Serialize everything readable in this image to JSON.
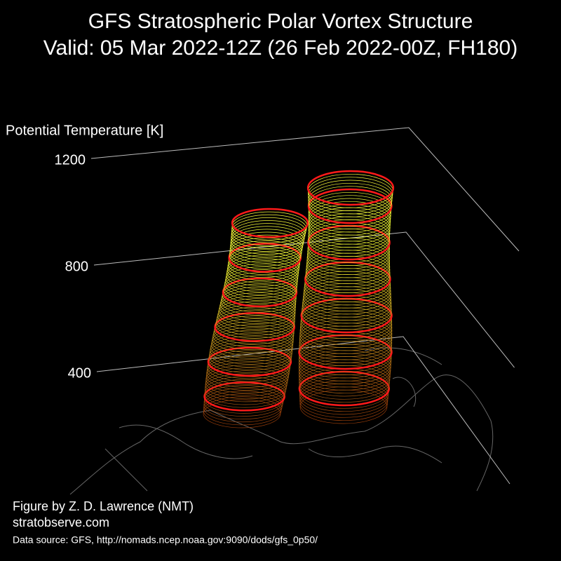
{
  "chart_data": {
    "type": "vortex3d",
    "title": "GFS Stratospheric Polar Vortex Structure",
    "subtitle": "Valid: 05 Mar 2022-12Z  (26 Feb 2022-00Z, FH180)",
    "zlabel": "Potential Temperature [K]",
    "zlim": [
      400,
      1200
    ],
    "zticks": [
      400,
      800,
      1200
    ]
  },
  "credits": {
    "author": "Figure by Z. D. Lawrence (NMT)",
    "site": "stratobserve.com",
    "source": "Data source: GFS, http://nomads.ncep.noaa.gov:9090/dods/gfs_0p50/"
  }
}
